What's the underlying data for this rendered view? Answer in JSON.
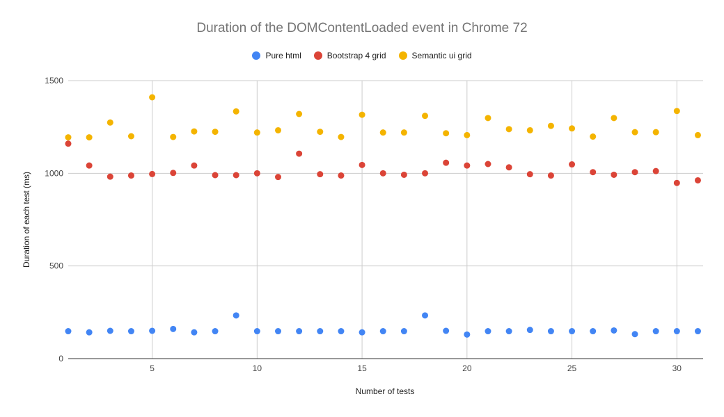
{
  "chart_data": {
    "type": "scatter",
    "title": "Duration of the DOMContentLoaded event in Chrome 72",
    "xlabel": "Number of tests",
    "ylabel": "Duration of each test (ms)",
    "xlim": [
      1,
      31.25
    ],
    "ylim": [
      0,
      1500
    ],
    "xticks": [
      5,
      10,
      15,
      20,
      25,
      30
    ],
    "yticks": [
      0,
      500,
      1000,
      1500
    ],
    "grid": true,
    "legend_position": "top",
    "x": [
      1,
      2,
      3,
      4,
      5,
      6,
      7,
      8,
      9,
      10,
      11,
      12,
      13,
      14,
      15,
      16,
      17,
      18,
      19,
      20,
      21,
      22,
      23,
      24,
      25,
      26,
      27,
      28,
      29,
      30,
      31
    ],
    "series": [
      {
        "name": "Pure html",
        "color": "#4285f4",
        "values": [
          148,
          142,
          150,
          148,
          150,
          160,
          142,
          148,
          233,
          148,
          148,
          148,
          148,
          148,
          142,
          148,
          148,
          233,
          150,
          130,
          148,
          148,
          155,
          148,
          148,
          148,
          152,
          132,
          148,
          148,
          148
        ]
      },
      {
        "name": "Bootstrap 4 grid",
        "color": "#db4437",
        "values": [
          1160,
          1042,
          982,
          988,
          996,
          1002,
          1042,
          990,
          990,
          1000,
          980,
          1106,
          995,
          988,
          1045,
          1000,
          992,
          1000,
          1057,
          1042,
          1050,
          1032,
          995,
          988,
          1048,
          1006,
          992,
          1006,
          1012,
          948,
          962
        ]
      },
      {
        "name": "Semantic ui grid",
        "color": "#f4b400",
        "values": [
          1194,
          1194,
          1274,
          1200,
          1410,
          1196,
          1226,
          1224,
          1334,
          1220,
          1232,
          1320,
          1224,
          1196,
          1316,
          1220,
          1220,
          1310,
          1216,
          1206,
          1298,
          1238,
          1232,
          1256,
          1242,
          1198,
          1298,
          1222,
          1222,
          1336,
          1206
        ]
      }
    ]
  }
}
